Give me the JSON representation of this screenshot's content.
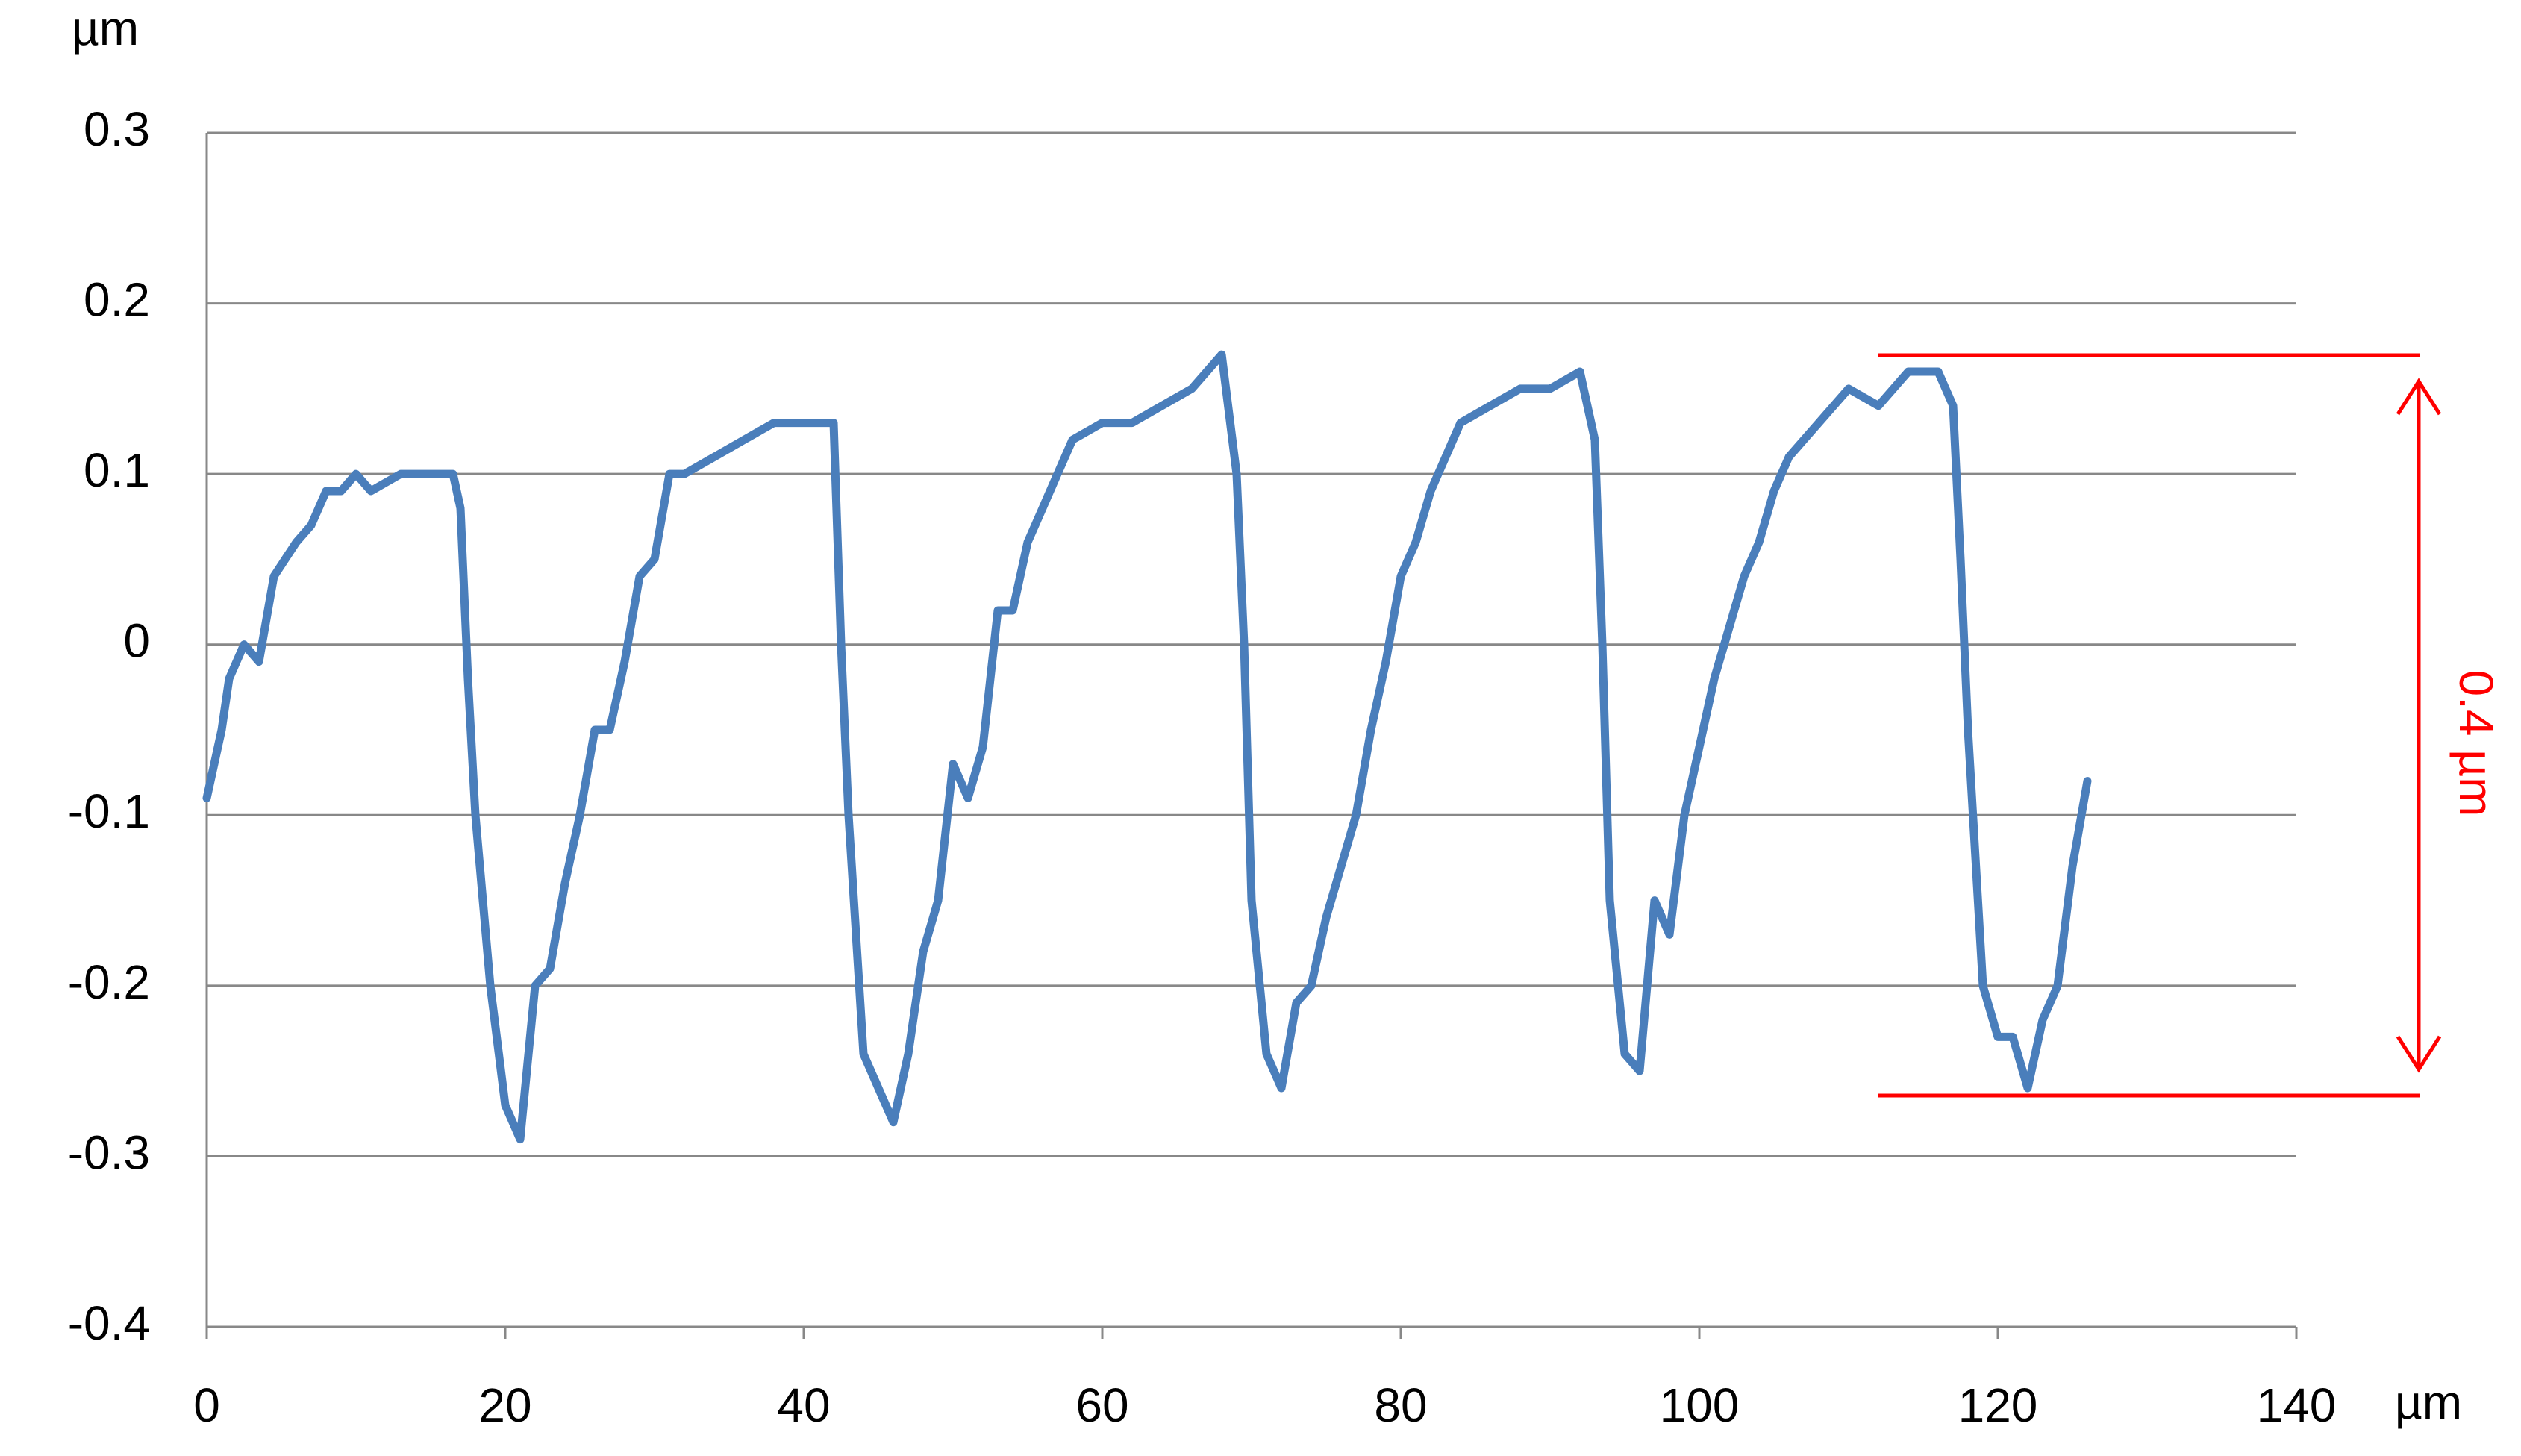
{
  "chart_data": {
    "type": "line",
    "y_unit": "µm",
    "x_unit": "µm",
    "annotation": "0.4 µm",
    "xlim": [
      0,
      140
    ],
    "xticks": [
      0,
      20,
      40,
      60,
      80,
      100,
      120,
      140
    ],
    "ylim": [
      -0.4,
      0.3
    ],
    "yticks": [
      -0.4,
      -0.3,
      -0.2,
      -0.1,
      0,
      0.1,
      0.2,
      0.3
    ],
    "grid": true,
    "color": "#4a7ebb",
    "x": [
      0,
      1,
      1.5,
      2.5,
      3.5,
      4.5,
      6,
      7,
      8,
      9,
      10,
      11,
      13,
      15,
      16.5,
      17,
      17.5,
      18,
      19,
      20,
      21,
      22,
      23,
      24,
      25,
      26,
      27,
      28,
      29,
      30,
      31,
      32,
      34,
      36,
      38,
      40,
      42,
      42.5,
      43,
      44,
      45,
      46,
      47,
      48,
      49,
      50,
      51,
      52,
      53,
      54,
      55,
      56,
      57,
      58,
      60,
      62,
      64,
      66,
      68,
      69,
      69.5,
      70,
      71,
      72,
      73,
      74,
      75,
      76,
      77,
      78,
      79,
      80,
      81,
      82,
      83,
      84,
      86,
      88,
      90,
      92,
      93,
      93.5,
      94,
      95,
      96,
      97,
      98,
      99,
      100,
      101,
      102,
      103,
      104,
      105,
      106,
      107,
      108,
      110,
      112,
      114,
      116,
      117,
      117.5,
      118,
      119,
      120,
      121,
      122,
      123,
      124,
      125,
      126
    ],
    "values": [
      -0.09,
      -0.05,
      -0.02,
      0.0,
      -0.01,
      0.04,
      0.06,
      0.07,
      0.09,
      0.09,
      0.1,
      0.09,
      0.1,
      0.1,
      0.1,
      0.08,
      -0.02,
      -0.1,
      -0.2,
      -0.27,
      -0.29,
      -0.2,
      -0.19,
      -0.14,
      -0.1,
      -0.05,
      -0.05,
      -0.01,
      0.04,
      0.05,
      0.1,
      0.1,
      0.11,
      0.12,
      0.13,
      0.13,
      0.13,
      0.0,
      -0.1,
      -0.24,
      -0.26,
      -0.28,
      -0.24,
      -0.18,
      -0.15,
      -0.07,
      -0.09,
      -0.06,
      0.02,
      0.02,
      0.06,
      0.08,
      0.1,
      0.12,
      0.13,
      0.13,
      0.14,
      0.15,
      0.17,
      0.1,
      0.0,
      -0.15,
      -0.24,
      -0.26,
      -0.21,
      -0.2,
      -0.16,
      -0.13,
      -0.1,
      -0.05,
      -0.01,
      0.04,
      0.06,
      0.09,
      0.11,
      0.13,
      0.14,
      0.15,
      0.15,
      0.16,
      0.12,
      0.0,
      -0.15,
      -0.24,
      -0.25,
      -0.15,
      -0.17,
      -0.1,
      -0.06,
      -0.02,
      0.01,
      0.04,
      0.06,
      0.09,
      0.11,
      0.12,
      0.13,
      0.15,
      0.14,
      0.16,
      0.16,
      0.14,
      0.05,
      -0.05,
      -0.2,
      -0.23,
      -0.23,
      -0.26,
      -0.22,
      -0.2,
      -0.13,
      -0.08
    ]
  }
}
